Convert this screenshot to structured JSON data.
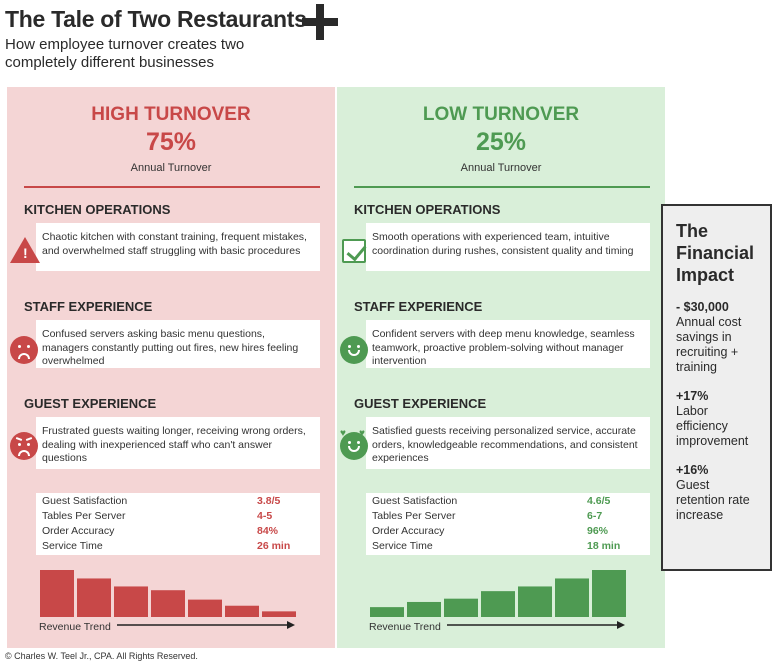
{
  "title": "The Tale of Two Restaurants",
  "subtitle": "How employee turnover creates two completely different businesses",
  "high": {
    "heading": "HIGH TURNOVER",
    "percent": "75%",
    "percent_label": "Annual Turnover",
    "sections": [
      {
        "title": "KITCHEN OPERATIONS",
        "icon": "warning-icon",
        "text": "Chaotic kitchen with constant training, frequent mistakes, and overwhelmed staff struggling with basic procedures"
      },
      {
        "title": "STAFF EXPERIENCE",
        "icon": "sad-face-icon",
        "text": "Confused servers asking basic menu questions, managers constantly putting out fires, new hires feeling overwhelmed"
      },
      {
        "title": "GUEST EXPERIENCE",
        "icon": "angry-face-icon",
        "text": "Frustrated guests waiting longer, receiving wrong orders, dealing with inexperienced staff who can't answer questions"
      }
    ],
    "metrics": [
      {
        "label": "Guest Satisfaction",
        "value": "3.8/5"
      },
      {
        "label": "Tables Per Server",
        "value": "4-5"
      },
      {
        "label": "Order Accuracy",
        "value": "84%"
      },
      {
        "label": "Service Time",
        "value": "26 min"
      }
    ],
    "trend_label": "Revenue Trend",
    "trend_color": "#c84848"
  },
  "low": {
    "heading": "LOW TURNOVER",
    "percent": "25%",
    "percent_label": "Annual Turnover",
    "sections": [
      {
        "title": "KITCHEN OPERATIONS",
        "icon": "checkbox-icon",
        "text": "Smooth operations with experienced team, intuitive coordination during rushes, consistent quality and timing"
      },
      {
        "title": "STAFF EXPERIENCE",
        "icon": "smiley-face-icon",
        "text": "Confident servers with deep menu knowledge, seamless teamwork, proactive problem-solving without manager intervention"
      },
      {
        "title": "GUEST EXPERIENCE",
        "icon": "heart-eyes-face-icon",
        "text": "Satisfied guests receiving personalized service, accurate orders, knowledgeable recommendations, and consistent experiences"
      }
    ],
    "metrics": [
      {
        "label": "Guest Satisfaction",
        "value": "4.6/5"
      },
      {
        "label": "Tables Per Server",
        "value": "6-7"
      },
      {
        "label": "Order Accuracy",
        "value": "96%"
      },
      {
        "label": "Service Time",
        "value": "18 min"
      }
    ],
    "trend_label": "Revenue Trend",
    "trend_color": "#4e9a52"
  },
  "chart_data": [
    {
      "type": "bar",
      "xlabel": "Revenue Trend",
      "series_relative": [
        1.0,
        0.82,
        0.65,
        0.57,
        0.37,
        0.24,
        0.12
      ]
    },
    {
      "type": "bar",
      "xlabel": "Revenue Trend",
      "series_relative": [
        0.21,
        0.32,
        0.39,
        0.55,
        0.65,
        0.82,
        1.0
      ]
    }
  ],
  "impact": {
    "title": "The Financial Impact",
    "items": [
      {
        "value": "- $30,000",
        "desc": "Annual cost savings in recruiting + training"
      },
      {
        "value": "+17%",
        "desc": "Labor efficiency improvement"
      },
      {
        "value": "+16%",
        "desc": "Guest retention rate increase"
      }
    ]
  },
  "footer": "© Charles W. Teel Jr., CPA.  All Rights Reserved."
}
